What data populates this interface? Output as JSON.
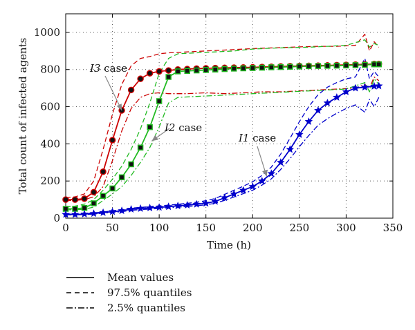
{
  "chart_data": {
    "type": "line",
    "title": "",
    "xlabel": "Time (h)",
    "ylabel": "Total count of infected agents",
    "xlim": [
      0,
      350
    ],
    "ylim": [
      0,
      1100
    ],
    "xticks": [
      0,
      50,
      100,
      150,
      200,
      250,
      300,
      350
    ],
    "yticks": [
      0,
      200,
      400,
      600,
      800,
      1000
    ],
    "grid": true,
    "annotations": [
      {
        "label": "I3 case",
        "color": "#000000",
        "target": [
          60,
          580
        ]
      },
      {
        "label": "I2 case",
        "color": "#000000",
        "target": [
          92,
          415
        ]
      },
      {
        "label": "I1 case",
        "color": "#000000",
        "target": [
          215,
          225
        ]
      }
    ],
    "series": [
      {
        "name": "I3 case",
        "color": "#cc0000",
        "marker": "circle",
        "marker_x": [
          0,
          10,
          20,
          30,
          40,
          50,
          60,
          70,
          80,
          90,
          100,
          110,
          120,
          130,
          140,
          150,
          160,
          170,
          180,
          190,
          200,
          210,
          220,
          230,
          240,
          250,
          260,
          270,
          280,
          290,
          300,
          310,
          320,
          330,
          335
        ],
        "mean": {
          "x": [
            0,
            10,
            20,
            30,
            40,
            50,
            55,
            60,
            70,
            80,
            90,
            100,
            110,
            120,
            140,
            160,
            180,
            200,
            220,
            240,
            260,
            280,
            300,
            320,
            330,
            335
          ],
          "y": [
            100,
            100,
            105,
            140,
            250,
            420,
            500,
            580,
            690,
            750,
            780,
            790,
            795,
            800,
            805,
            808,
            810,
            812,
            815,
            818,
            820,
            822,
            825,
            828,
            830,
            830
          ]
        },
        "q975": {
          "x": [
            0,
            10,
            20,
            30,
            40,
            50,
            60,
            70,
            80,
            90,
            100,
            110,
            130,
            150,
            170,
            190,
            210,
            230,
            250,
            270,
            290,
            310,
            320,
            325,
            330,
            335
          ],
          "y": [
            110,
            115,
            130,
            200,
            370,
            560,
            720,
            820,
            860,
            870,
            885,
            890,
            895,
            900,
            905,
            910,
            915,
            918,
            922,
            925,
            925,
            930,
            990,
            900,
            950,
            920
          ]
        },
        "q025": {
          "x": [
            0,
            10,
            20,
            30,
            40,
            50,
            60,
            70,
            80,
            90,
            100,
            110,
            130,
            150,
            170,
            190,
            210,
            230,
            250,
            270,
            290,
            310,
            320,
            325,
            330,
            335
          ],
          "y": [
            95,
            95,
            100,
            115,
            170,
            310,
            470,
            590,
            650,
            670,
            675,
            670,
            670,
            675,
            670,
            675,
            680,
            680,
            685,
            690,
            695,
            700,
            720,
            700,
            760,
            740
          ]
        }
      },
      {
        "name": "I2 case",
        "color": "#22bb22",
        "marker": "square",
        "marker_x": [
          0,
          10,
          20,
          30,
          40,
          50,
          60,
          70,
          80,
          90,
          100,
          110,
          120,
          130,
          140,
          150,
          160,
          170,
          180,
          190,
          200,
          210,
          220,
          230,
          240,
          250,
          260,
          270,
          280,
          290,
          300,
          310,
          320,
          330,
          335
        ],
        "mean": {
          "x": [
            0,
            10,
            20,
            30,
            40,
            50,
            60,
            70,
            80,
            90,
            100,
            110,
            120,
            140,
            160,
            180,
            200,
            220,
            240,
            260,
            280,
            300,
            320,
            330,
            335
          ],
          "y": [
            50,
            50,
            55,
            80,
            120,
            160,
            220,
            290,
            380,
            490,
            630,
            760,
            790,
            795,
            800,
            805,
            808,
            812,
            815,
            818,
            820,
            822,
            825,
            828,
            828
          ]
        },
        "q975": {
          "x": [
            0,
            10,
            20,
            30,
            40,
            50,
            60,
            70,
            80,
            90,
            100,
            110,
            120,
            140,
            160,
            180,
            200,
            220,
            240,
            260,
            280,
            300,
            320,
            325,
            330,
            335
          ],
          "y": [
            60,
            65,
            75,
            100,
            150,
            210,
            280,
            370,
            480,
            620,
            780,
            860,
            885,
            890,
            895,
            900,
            910,
            915,
            918,
            920,
            925,
            930,
            960,
            920,
            940,
            930
          ]
        },
        "q025": {
          "x": [
            0,
            10,
            20,
            30,
            40,
            50,
            60,
            70,
            80,
            90,
            100,
            110,
            120,
            140,
            160,
            180,
            200,
            220,
            240,
            260,
            280,
            300,
            320,
            325,
            330,
            335
          ],
          "y": [
            45,
            45,
            48,
            60,
            95,
            130,
            170,
            230,
            300,
            380,
            490,
            620,
            650,
            655,
            660,
            665,
            670,
            675,
            680,
            685,
            690,
            695,
            730,
            680,
            750,
            720
          ]
        }
      },
      {
        "name": "I1 case",
        "color": "#0000cc",
        "marker": "star",
        "marker_x": [
          0,
          10,
          20,
          30,
          40,
          50,
          60,
          70,
          80,
          90,
          100,
          110,
          120,
          130,
          140,
          150,
          160,
          170,
          180,
          190,
          200,
          210,
          220,
          230,
          240,
          250,
          260,
          270,
          280,
          290,
          300,
          310,
          320,
          330,
          335
        ],
        "mean": {
          "x": [
            0,
            10,
            20,
            30,
            40,
            50,
            60,
            70,
            80,
            90,
            100,
            110,
            120,
            130,
            140,
            150,
            160,
            170,
            180,
            190,
            200,
            210,
            220,
            230,
            240,
            250,
            260,
            270,
            280,
            290,
            300,
            310,
            320,
            330,
            335
          ],
          "y": [
            20,
            20,
            22,
            25,
            30,
            35,
            40,
            48,
            52,
            55,
            58,
            62,
            66,
            70,
            75,
            80,
            90,
            110,
            130,
            150,
            170,
            200,
            240,
            300,
            370,
            450,
            520,
            580,
            620,
            650,
            680,
            700,
            705,
            710,
            712
          ]
        },
        "q975": {
          "x": [
            0,
            10,
            20,
            30,
            40,
            50,
            60,
            70,
            80,
            90,
            100,
            110,
            120,
            130,
            140,
            150,
            160,
            170,
            180,
            190,
            200,
            210,
            220,
            230,
            240,
            250,
            260,
            270,
            280,
            290,
            300,
            310,
            320,
            325,
            330,
            335
          ],
          "y": [
            22,
            23,
            25,
            28,
            33,
            40,
            46,
            54,
            58,
            62,
            66,
            70,
            75,
            80,
            86,
            94,
            106,
            128,
            150,
            172,
            196,
            230,
            275,
            345,
            430,
            520,
            600,
            665,
            705,
            730,
            750,
            760,
            860,
            750,
            790,
            760
          ]
        },
        "q025": {
          "x": [
            0,
            10,
            20,
            30,
            40,
            50,
            60,
            70,
            80,
            90,
            100,
            110,
            120,
            130,
            140,
            150,
            160,
            170,
            180,
            190,
            200,
            210,
            220,
            230,
            240,
            250,
            260,
            270,
            280,
            290,
            300,
            310,
            320,
            325,
            330,
            335
          ],
          "y": [
            18,
            18,
            19,
            22,
            27,
            31,
            35,
            42,
            46,
            49,
            52,
            56,
            59,
            63,
            67,
            72,
            80,
            96,
            114,
            132,
            150,
            178,
            212,
            262,
            320,
            385,
            445,
            500,
            535,
            565,
            590,
            610,
            570,
            640,
            600,
            650
          ]
        }
      }
    ],
    "legend": {
      "placement": "bottom-left",
      "entries": [
        {
          "label": "Mean values",
          "style": "solid"
        },
        {
          "label": "97.5% quantiles",
          "style": "dashed"
        },
        {
          "label": "2.5% quantiles",
          "style": "dashdot"
        }
      ]
    }
  }
}
